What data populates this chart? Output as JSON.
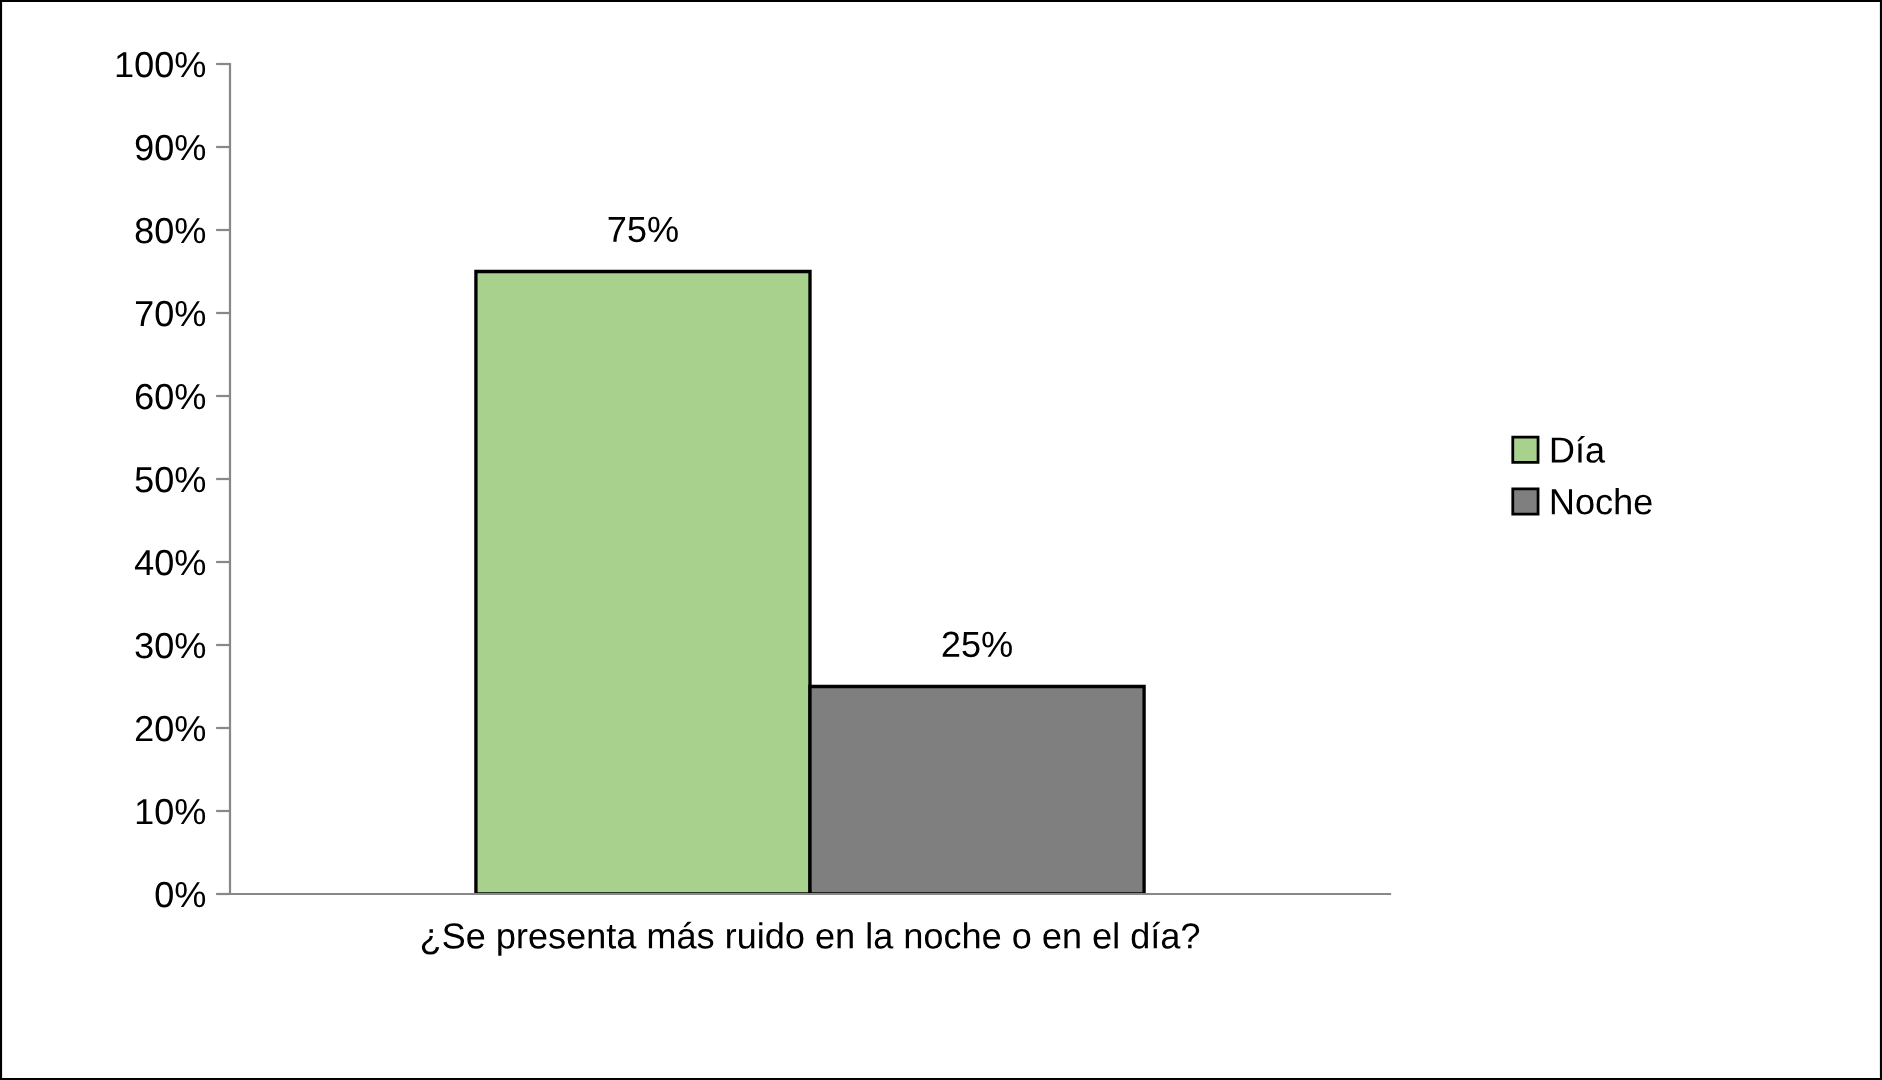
{
  "chart_data": {
    "type": "bar",
    "categories": [
      "¿Se presenta más ruido en la noche o en el día?"
    ],
    "series": [
      {
        "name": "Día",
        "color": "#a9d18e",
        "values": [
          75
        ],
        "value_labels": [
          "75%"
        ]
      },
      {
        "name": "Noche",
        "color": "#7f7f7f",
        "values": [
          25
        ],
        "value_labels": [
          "25%"
        ]
      }
    ],
    "ylim": [
      0,
      100
    ],
    "yticks": [
      {
        "value": 0,
        "label": "0%"
      },
      {
        "value": 10,
        "label": "10%"
      },
      {
        "value": 20,
        "label": "20%"
      },
      {
        "value": 30,
        "label": "30%"
      },
      {
        "value": 40,
        "label": "40%"
      },
      {
        "value": 50,
        "label": "50%"
      },
      {
        "value": 60,
        "label": "60%"
      },
      {
        "value": 70,
        "label": "70%"
      },
      {
        "value": 80,
        "label": "80%"
      },
      {
        "value": 90,
        "label": "90%"
      },
      {
        "value": 100,
        "label": "100%"
      }
    ],
    "grid": false,
    "legend": "right"
  }
}
